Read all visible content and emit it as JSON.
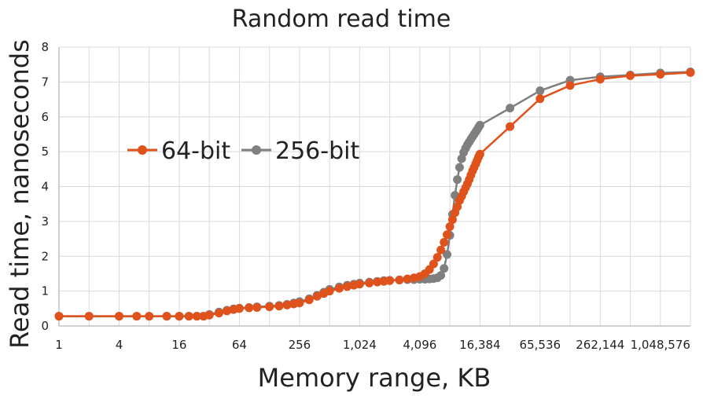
{
  "chart_data": {
    "type": "line",
    "title": "Random read time",
    "xlabel": "Memory range, KB",
    "ylabel": "Read time, nanoseconds",
    "x_scale": "log2",
    "xlim": [
      1,
      2097152
    ],
    "ylim": [
      0,
      8
    ],
    "x_ticks": [
      1,
      4,
      16,
      64,
      256,
      1024,
      4096,
      16384,
      65536,
      262144,
      1048576
    ],
    "x_tick_labels": [
      "1",
      "4",
      "16",
      "64",
      "256",
      "1,024",
      "4,096",
      "16,384",
      "65,536",
      "262,144",
      "1,048,576"
    ],
    "y_ticks": [
      0,
      1,
      2,
      3,
      4,
      5,
      6,
      7,
      8
    ],
    "grid": true,
    "legend": {
      "position": "middle-left",
      "entries": [
        "64-bit",
        "256-bit"
      ]
    },
    "series": [
      {
        "name": "64-bit",
        "color": "#e0521b",
        "points": [
          [
            1,
            0.28
          ],
          [
            2,
            0.28
          ],
          [
            4,
            0.28
          ],
          [
            6,
            0.28
          ],
          [
            8,
            0.28
          ],
          [
            12,
            0.28
          ],
          [
            16,
            0.28
          ],
          [
            20,
            0.28
          ],
          [
            24,
            0.28
          ],
          [
            28,
            0.28
          ],
          [
            32,
            0.31
          ],
          [
            40,
            0.37
          ],
          [
            48,
            0.43
          ],
          [
            56,
            0.47
          ],
          [
            64,
            0.5
          ],
          [
            80,
            0.52
          ],
          [
            96,
            0.53
          ],
          [
            128,
            0.55
          ],
          [
            160,
            0.57
          ],
          [
            192,
            0.6
          ],
          [
            224,
            0.63
          ],
          [
            256,
            0.66
          ],
          [
            320,
            0.75
          ],
          [
            384,
            0.85
          ],
          [
            448,
            0.93
          ],
          [
            512,
            1.0
          ],
          [
            640,
            1.08
          ],
          [
            768,
            1.13
          ],
          [
            896,
            1.17
          ],
          [
            1024,
            1.2
          ],
          [
            1280,
            1.23
          ],
          [
            1536,
            1.26
          ],
          [
            1792,
            1.28
          ],
          [
            2048,
            1.3
          ],
          [
            2560,
            1.32
          ],
          [
            3072,
            1.35
          ],
          [
            3584,
            1.38
          ],
          [
            4096,
            1.42
          ],
          [
            4608,
            1.5
          ],
          [
            5120,
            1.62
          ],
          [
            5632,
            1.78
          ],
          [
            6144,
            1.97
          ],
          [
            6656,
            2.18
          ],
          [
            7168,
            2.4
          ],
          [
            7680,
            2.62
          ],
          [
            8192,
            2.85
          ],
          [
            8704,
            3.05
          ],
          [
            9216,
            3.25
          ],
          [
            9728,
            3.42
          ],
          [
            10240,
            3.6
          ],
          [
            10752,
            3.72
          ],
          [
            11264,
            3.85
          ],
          [
            11776,
            3.97
          ],
          [
            12288,
            4.08
          ],
          [
            12800,
            4.2
          ],
          [
            13312,
            4.33
          ],
          [
            13824,
            4.45
          ],
          [
            14336,
            4.55
          ],
          [
            14848,
            4.65
          ],
          [
            15360,
            4.75
          ],
          [
            15872,
            4.85
          ],
          [
            16384,
            4.93
          ],
          [
            32768,
            5.72
          ],
          [
            65536,
            6.52
          ],
          [
            131072,
            6.9
          ],
          [
            262144,
            7.08
          ],
          [
            524288,
            7.18
          ],
          [
            1048576,
            7.22
          ],
          [
            2097152,
            7.27
          ]
        ]
      },
      {
        "name": "256-bit",
        "color": "#7f7f7f",
        "points": [
          [
            1,
            0.28
          ],
          [
            2,
            0.28
          ],
          [
            4,
            0.28
          ],
          [
            6,
            0.28
          ],
          [
            8,
            0.28
          ],
          [
            12,
            0.28
          ],
          [
            16,
            0.28
          ],
          [
            20,
            0.28
          ],
          [
            24,
            0.28
          ],
          [
            28,
            0.28
          ],
          [
            32,
            0.33
          ],
          [
            40,
            0.4
          ],
          [
            48,
            0.45
          ],
          [
            56,
            0.49
          ],
          [
            64,
            0.51
          ],
          [
            80,
            0.53
          ],
          [
            96,
            0.55
          ],
          [
            128,
            0.57
          ],
          [
            160,
            0.59
          ],
          [
            192,
            0.62
          ],
          [
            224,
            0.66
          ],
          [
            256,
            0.7
          ],
          [
            320,
            0.78
          ],
          [
            384,
            0.88
          ],
          [
            448,
            0.97
          ],
          [
            512,
            1.05
          ],
          [
            640,
            1.12
          ],
          [
            768,
            1.17
          ],
          [
            896,
            1.2
          ],
          [
            1024,
            1.23
          ],
          [
            1280,
            1.26
          ],
          [
            1536,
            1.28
          ],
          [
            1792,
            1.3
          ],
          [
            2048,
            1.31
          ],
          [
            2560,
            1.32
          ],
          [
            3072,
            1.33
          ],
          [
            3584,
            1.33
          ],
          [
            4096,
            1.34
          ],
          [
            4608,
            1.34
          ],
          [
            5120,
            1.35
          ],
          [
            5632,
            1.36
          ],
          [
            6144,
            1.38
          ],
          [
            6656,
            1.45
          ],
          [
            7168,
            1.65
          ],
          [
            7680,
            2.05
          ],
          [
            8192,
            2.6
          ],
          [
            8704,
            3.2
          ],
          [
            9216,
            3.75
          ],
          [
            9728,
            4.2
          ],
          [
            10240,
            4.55
          ],
          [
            10752,
            4.8
          ],
          [
            11264,
            4.98
          ],
          [
            11776,
            5.1
          ],
          [
            12288,
            5.2
          ],
          [
            12800,
            5.28
          ],
          [
            13312,
            5.36
          ],
          [
            13824,
            5.43
          ],
          [
            14336,
            5.5
          ],
          [
            14848,
            5.57
          ],
          [
            15360,
            5.63
          ],
          [
            15872,
            5.7
          ],
          [
            16384,
            5.76
          ],
          [
            32768,
            6.25
          ],
          [
            65536,
            6.75
          ],
          [
            131072,
            7.05
          ],
          [
            262144,
            7.15
          ],
          [
            524288,
            7.2
          ],
          [
            1048576,
            7.26
          ],
          [
            2097152,
            7.29
          ]
        ]
      }
    ]
  }
}
